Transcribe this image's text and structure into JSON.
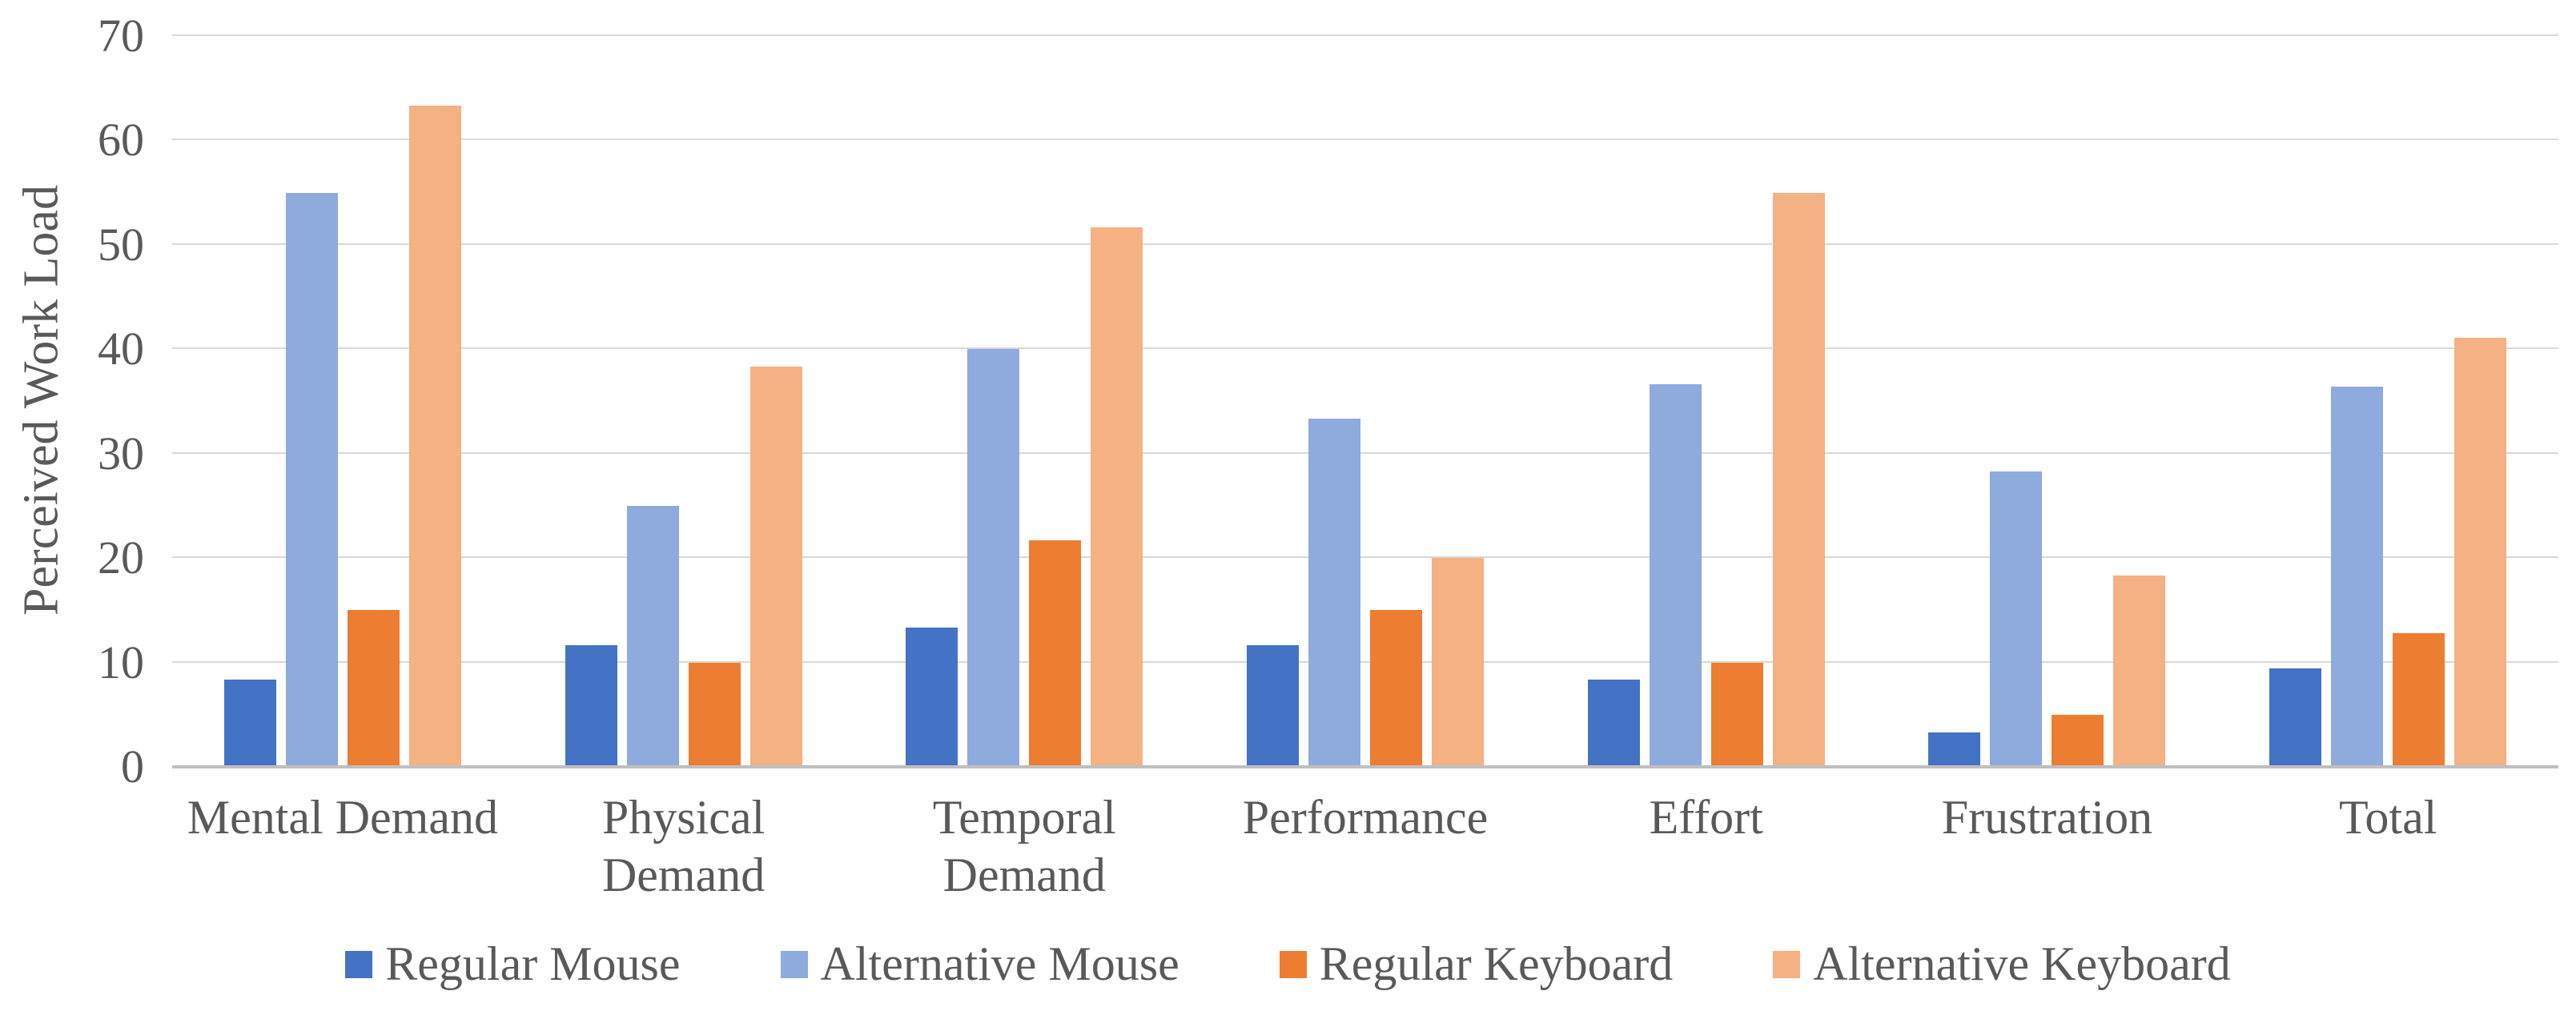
{
  "chart_data": {
    "type": "bar",
    "title": "",
    "xlabel": "",
    "ylabel": "Perceived Work Load",
    "ylim": [
      0,
      70
    ],
    "ytick_step": 10,
    "yticks": [
      0,
      10,
      20,
      30,
      40,
      50,
      60,
      70
    ],
    "grid": true,
    "legend_position": "bottom",
    "categories": [
      "Mental Demand",
      "Physical\nDemand",
      "Temporal\nDemand",
      "Performance",
      "Effort",
      "Frustration",
      "Total"
    ],
    "series": [
      {
        "name": "Regular Mouse",
        "color": "#4472C4",
        "values": [
          8.33,
          11.67,
          13.33,
          11.67,
          8.33,
          3.33,
          9.44
        ]
      },
      {
        "name": "Alternative Mouse",
        "color": "#8FAADC",
        "values": [
          55,
          25,
          40,
          33.33,
          36.67,
          28.33,
          36.39
        ]
      },
      {
        "name": "Regular Keyboard",
        "color": "#ED7D31",
        "values": [
          15,
          10,
          21.67,
          15,
          10,
          5,
          12.78
        ]
      },
      {
        "name": "Alternative Keyboard",
        "color": "#F4B183",
        "values": [
          63.33,
          38.33,
          51.67,
          20,
          55,
          18.33,
          41.11
        ]
      }
    ],
    "colors": {
      "text": "#595959",
      "gridline": "#D9D9D9",
      "axis_line": "#BFBFBF",
      "background": "#FFFFFF"
    }
  }
}
